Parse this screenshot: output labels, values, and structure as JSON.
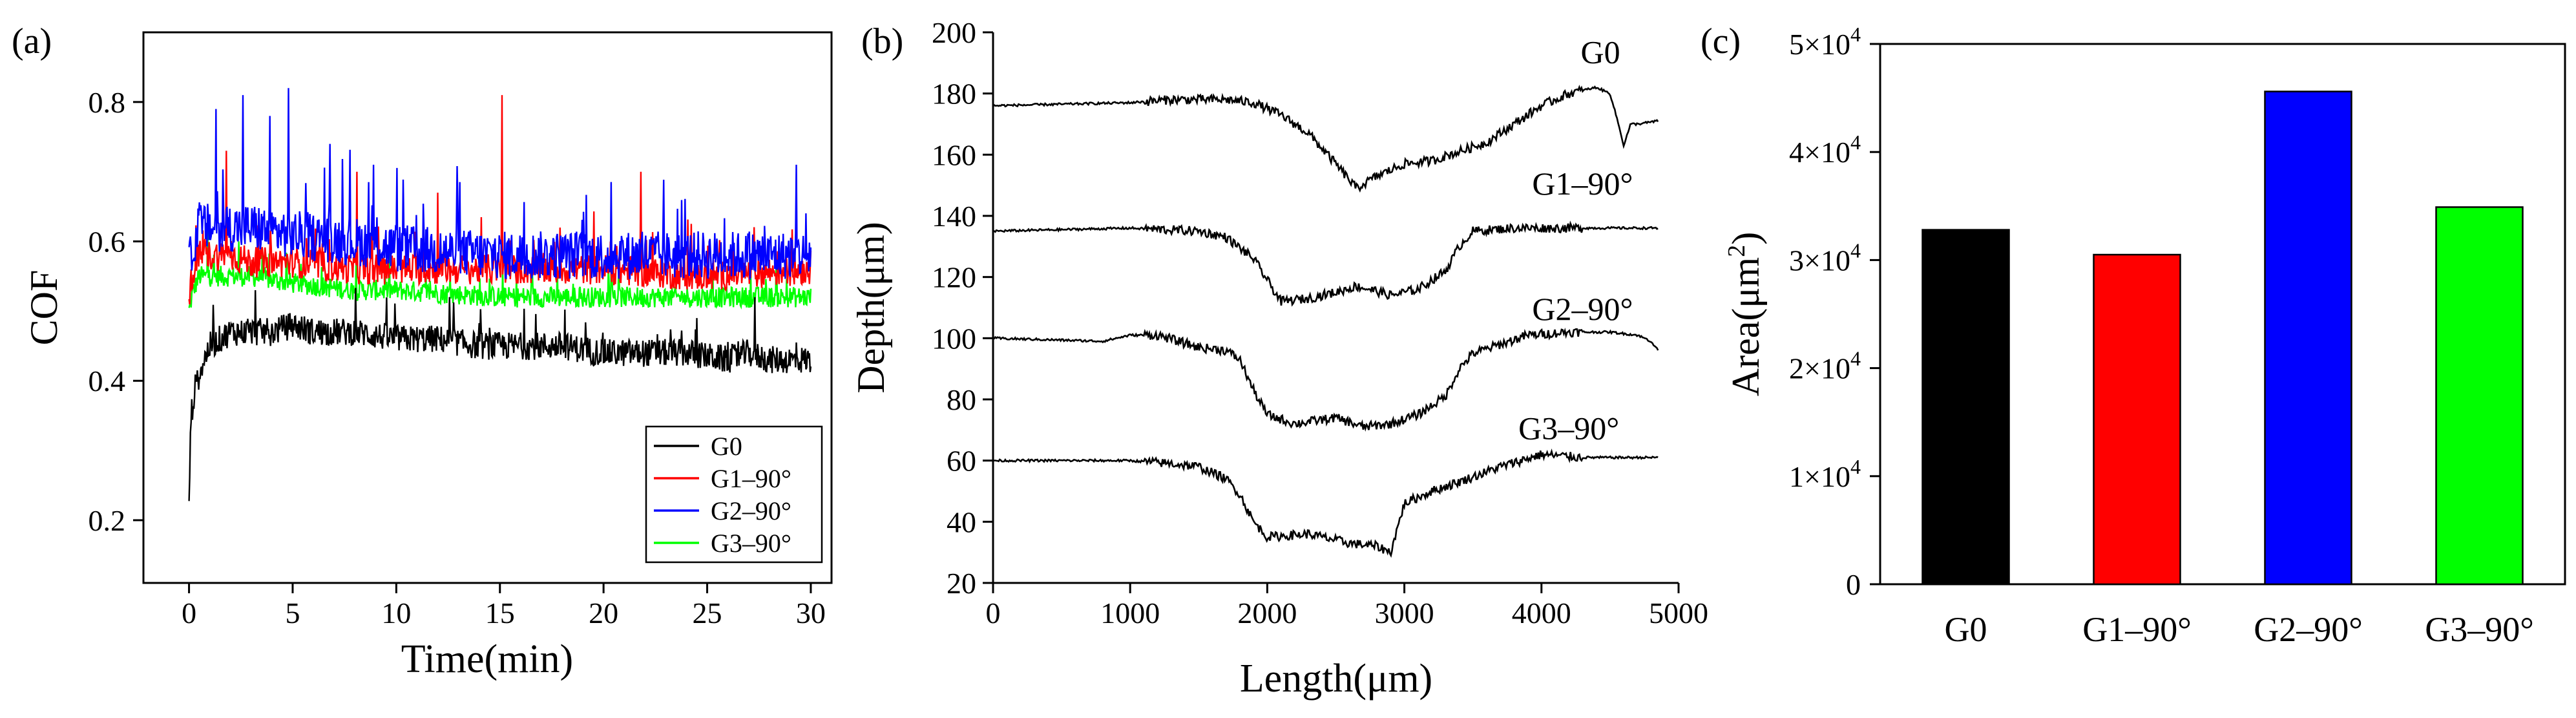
{
  "panels": [
    {
      "tag": "(a)",
      "chart_data": {
        "type": "line",
        "xlabel": "Time(min)",
        "ylabel": "COF",
        "xlim": [
          -2.2,
          31
        ],
        "ylim": [
          0.11,
          0.9
        ],
        "xticks": [
          0,
          5,
          10,
          15,
          20,
          25,
          30
        ],
        "yticks": [
          0.2,
          0.4,
          0.6,
          0.8
        ],
        "ytick_labels": [
          "0.2",
          "0.4",
          "0.6",
          "0.8"
        ],
        "legend": "bottom-right",
        "series": [
          {
            "name": "G0",
            "color": "#000000",
            "x": [
              0,
              0.1,
              0.3,
              0.6,
              1,
              1.5,
              2,
              3,
              4,
              5,
              6,
              8,
              10,
              12,
              14,
              16,
              18,
              20,
              22,
              24,
              26,
              27,
              28,
              29,
              30
            ],
            "y": [
              0.23,
              0.35,
              0.39,
              0.42,
              0.45,
              0.46,
              0.47,
              0.47,
              0.47,
              0.48,
              0.47,
              0.47,
              0.46,
              0.46,
              0.45,
              0.45,
              0.45,
              0.44,
              0.44,
              0.44,
              0.43,
              0.44,
              0.43,
              0.43,
              0.43
            ],
            "noise": 0.02,
            "peaks": [
              [
                27.3,
                0.52
              ],
              [
                24.5,
                0.49
              ],
              [
                3.2,
                0.53
              ]
            ]
          },
          {
            "name": "G1–90°",
            "color": "#ff0000",
            "x": [
              0,
              0.2,
              0.5,
              1,
              2,
              3,
              5,
              8,
              10,
              15,
              20,
              25,
              30
            ],
            "y": [
              0.52,
              0.56,
              0.58,
              0.58,
              0.58,
              0.57,
              0.57,
              0.56,
              0.56,
              0.56,
              0.56,
              0.55,
              0.56
            ],
            "noise": 0.022,
            "peaks": [
              [
                15.1,
                0.81
              ],
              [
                1.8,
                0.73
              ],
              [
                8.1,
                0.7
              ],
              [
                21.8,
                0.7
              ],
              [
                12,
                0.67
              ]
            ]
          },
          {
            "name": "G2–90°",
            "color": "#0000ff",
            "x": [
              0,
              0.2,
              0.5,
              1,
              2,
              3,
              5,
              8,
              10,
              15,
              20,
              25,
              30
            ],
            "y": [
              0.56,
              0.6,
              0.62,
              0.62,
              0.62,
              0.62,
              0.61,
              0.6,
              0.59,
              0.58,
              0.58,
              0.58,
              0.58
            ],
            "noise": 0.035,
            "peaks": [
              [
                4.8,
                0.82
              ],
              [
                2.6,
                0.81
              ],
              [
                1.3,
                0.79
              ],
              [
                3.9,
                0.78
              ],
              [
                6.8,
                0.74
              ],
              [
                8.9,
                0.71
              ],
              [
                29.3,
                0.71
              ]
            ]
          },
          {
            "name": "G3–90°",
            "color": "#00ff00",
            "x": [
              0,
              0.2,
              0.5,
              1,
              2,
              3,
              5,
              8,
              10,
              15,
              20,
              25,
              30
            ],
            "y": [
              0.5,
              0.53,
              0.55,
              0.55,
              0.55,
              0.55,
              0.54,
              0.53,
              0.53,
              0.52,
              0.52,
              0.52,
              0.52
            ],
            "noise": 0.015,
            "peaks": [
              [
                0.9,
                0.62
              ],
              [
                2.4,
                0.6
              ]
            ]
          }
        ]
      }
    },
    {
      "tag": "(b)",
      "chart_data": {
        "type": "line",
        "xlabel": "Length(μm)",
        "ylabel": "Depth(μm)",
        "xlim": [
          0,
          5000
        ],
        "ylim": [
          20,
          200
        ],
        "xticks": [
          0,
          1000,
          2000,
          3000,
          4000,
          5000
        ],
        "yticks": [
          20,
          40,
          60,
          80,
          100,
          120,
          140,
          160,
          180,
          200
        ],
        "series": [
          {
            "name": "G0",
            "color": "#000000",
            "label_x": 4430,
            "label_y": 190,
            "x": [
              0,
              1000,
              1300,
              1700,
              1900,
              2100,
              2300,
              2500,
              2650,
              2800,
              3000,
              3200,
              3400,
              3600,
              3800,
              4000,
              4200,
              4400,
              4500,
              4550,
              4600,
              4650,
              4700,
              4850
            ],
            "y": [
              176,
              177,
              178,
              178,
              177,
              173,
              167,
              157,
              149,
              153,
              157,
              158,
              161,
              164,
              170,
              176,
              180,
              182,
              180,
              172,
              163,
              170,
              170,
              171
            ],
            "noise": 1.5
          },
          {
            "name": "G1–90°",
            "color": "#000000",
            "label_x": 4300,
            "label_y": 147,
            "x": [
              0,
              1000,
              1500,
              1700,
              1900,
              2000,
              2100,
              2300,
              2500,
              2650,
              2750,
              2900,
              3100,
              3300,
              3400,
              3500,
              3800,
              4200,
              4850
            ],
            "y": [
              135,
              136,
              135,
              133,
              126,
              119,
              112,
              113,
              115,
              117,
              116,
              114,
              116,
              122,
              130,
              135,
              136,
              136,
              136
            ],
            "noise": 1.5
          },
          {
            "name": "G2–90°",
            "color": "#000000",
            "label_x": 4300,
            "label_y": 106,
            "x": [
              0,
              800,
              1000,
              1200,
              1500,
              1700,
              1800,
              1900,
              2000,
              2200,
              2500,
              2700,
              2900,
              3100,
              3300,
              3400,
              3500,
              3700,
              3900,
              4200,
              4500,
              4700,
              4800,
              4850
            ],
            "y": [
              100,
              99,
              101,
              101,
              97,
              96,
              93,
              83,
              75,
              72,
              74,
              71,
              72,
              75,
              81,
              90,
              95,
              98,
              101,
              102,
              102,
              101,
              99,
              96
            ],
            "noise": 1.5
          },
          {
            "name": "G3–90°",
            "color": "#000000",
            "label_x": 4200,
            "label_y": 67,
            "x": [
              0,
              800,
              1000,
              1300,
              1500,
              1700,
              1800,
              1900,
              2000,
              2300,
              2600,
              2800,
              2900,
              3000,
              3200,
              3400,
              3700,
              4000,
              4300,
              4850
            ],
            "y": [
              60,
              60,
              60,
              59,
              58,
              54,
              49,
              40,
              35,
              36,
              33,
              32,
              30,
              46,
              50,
              53,
              58,
              62,
              61,
              61
            ],
            "noise": 1.5
          }
        ]
      }
    },
    {
      "tag": "(c)",
      "chart_data": {
        "type": "bar",
        "ylabel": "Area(μm²)",
        "ylabel_main": "Area(μm",
        "ylabel_sup": "2",
        "ylabel_close": ")",
        "ylim": [
          0,
          50000
        ],
        "yticks": [
          0,
          10000,
          20000,
          30000,
          40000,
          50000
        ],
        "ytick_labels": [
          {
            "main": "0",
            "sup": ""
          },
          {
            "main": "1×10",
            "sup": "4"
          },
          {
            "main": "2×10",
            "sup": "4"
          },
          {
            "main": "3×10",
            "sup": "4"
          },
          {
            "main": "4×10",
            "sup": "4"
          },
          {
            "main": "5×10",
            "sup": "4"
          }
        ],
        "categories": [
          "G0",
          "G1–90°",
          "G2–90°",
          "G3–90°"
        ],
        "values": [
          32800,
          30500,
          45600,
          34900
        ],
        "colors": [
          "#000000",
          "#ff0000",
          "#0000ff",
          "#00ff00"
        ]
      }
    }
  ]
}
